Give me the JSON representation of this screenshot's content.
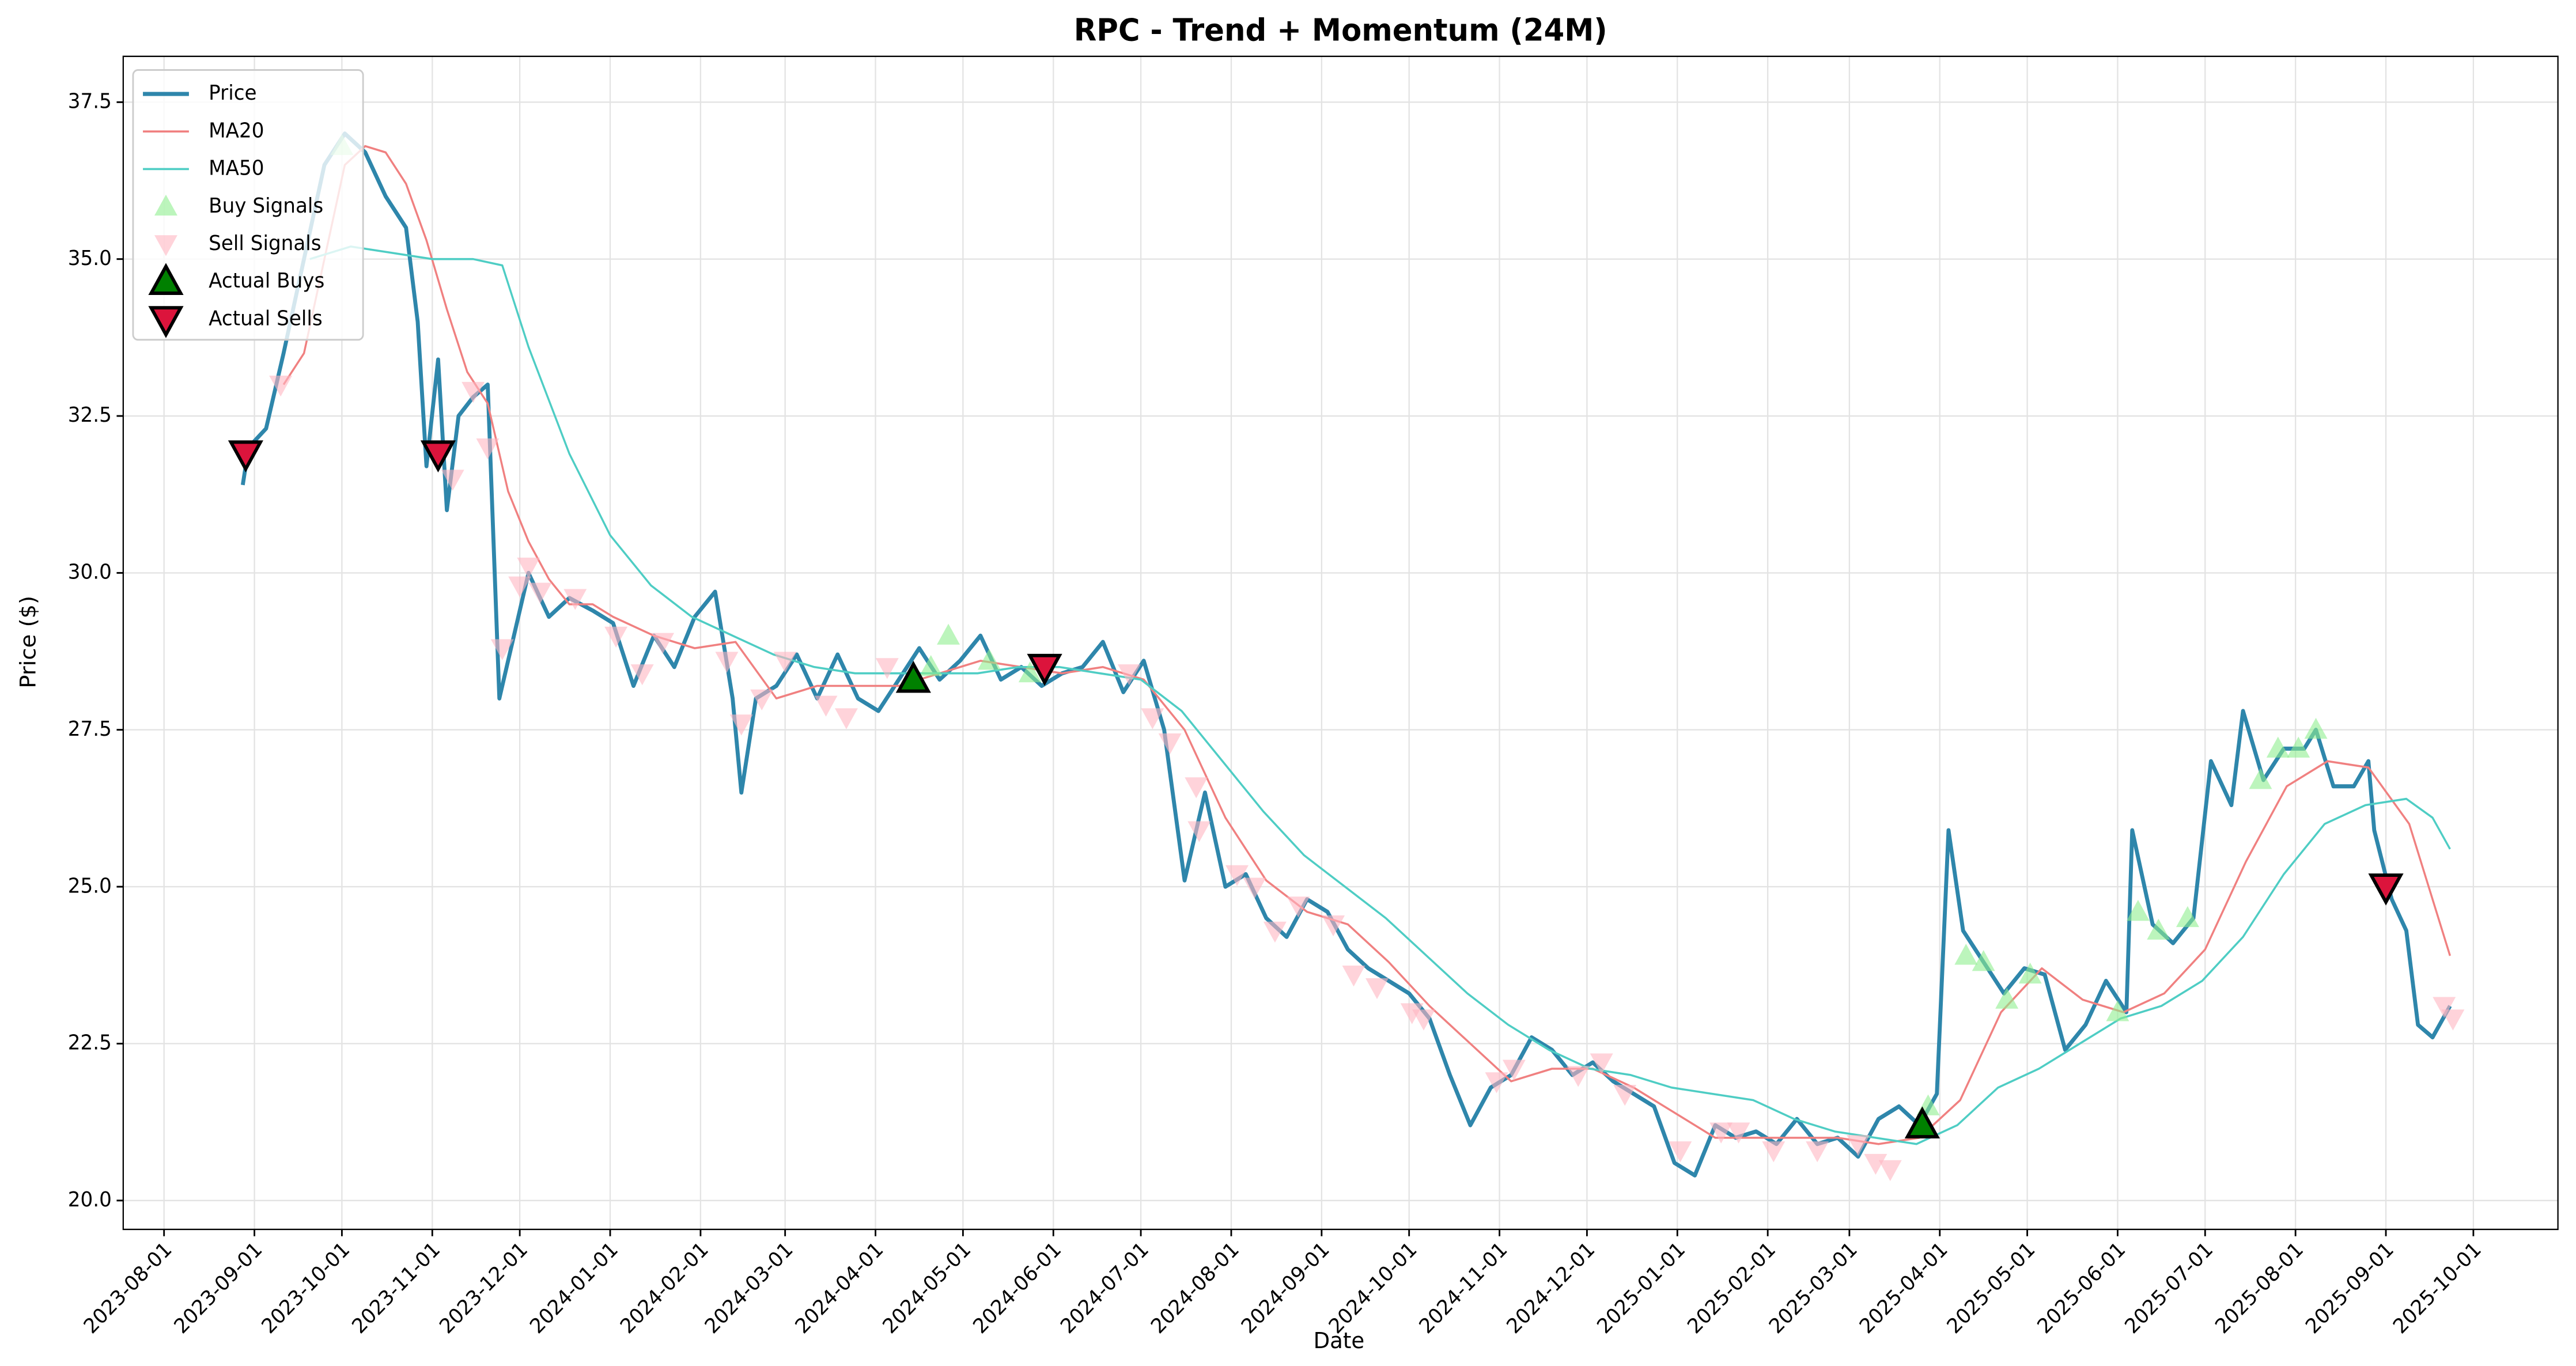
{
  "chart_data": {
    "type": "line",
    "title": "RPC - Trend + Momentum (24M)",
    "x_label": "Date",
    "y_label": "Price ($)",
    "xlim": [
      "2023-07-18",
      "2025-10-30"
    ],
    "xticks": [
      "2023-08-01",
      "2023-09-01",
      "2023-10-01",
      "2023-11-01",
      "2023-12-01",
      "2024-01-01",
      "2024-02-01",
      "2024-03-01",
      "2024-04-01",
      "2024-05-01",
      "2024-06-01",
      "2024-07-01",
      "2024-08-01",
      "2024-09-01",
      "2024-10-01",
      "2024-11-01",
      "2024-12-01",
      "2025-01-01",
      "2025-02-01",
      "2025-03-01",
      "2025-04-01",
      "2025-05-01",
      "2025-06-01",
      "2025-07-01",
      "2025-08-01",
      "2025-09-01",
      "2025-10-01"
    ],
    "ylim": [
      19.54,
      38.23
    ],
    "yticks": [
      {
        "value": 20,
        "label": "20.0"
      },
      22.5,
      {
        "value": 25,
        "label": "25.0"
      },
      27.5,
      {
        "value": 30,
        "label": "30.0"
      },
      32.5,
      {
        "value": 35,
        "label": "35.0"
      },
      37.5
    ],
    "grid": true,
    "legend": "upper left",
    "series": [
      {
        "name": "Price",
        "type": "line",
        "color": "#2e86ab",
        "linewidth": 2.4,
        "alpha": 1,
        "x": [
          "2023-08-28",
          "2023-08-30",
          "2023-09-05",
          "2023-09-11",
          "2023-09-18",
          "2023-09-25",
          "2023-10-02",
          "2023-10-09",
          "2023-10-16",
          "2023-10-23",
          "2023-10-27",
          "2023-10-30",
          "2023-11-03",
          "2023-11-06",
          "2023-11-10",
          "2023-11-15",
          "2023-11-20",
          "2023-11-24",
          "2023-11-28",
          "2023-12-04",
          "2023-12-11",
          "2023-12-18",
          "2023-12-26",
          "2024-01-02",
          "2024-01-09",
          "2024-01-16",
          "2024-01-23",
          "2024-01-30",
          "2024-02-06",
          "2024-02-12",
          "2024-02-15",
          "2024-02-20",
          "2024-02-27",
          "2024-03-05",
          "2024-03-12",
          "2024-03-19",
          "2024-03-26",
          "2024-04-02",
          "2024-04-09",
          "2024-04-16",
          "2024-04-23",
          "2024-04-30",
          "2024-05-07",
          "2024-05-14",
          "2024-05-21",
          "2024-05-28",
          "2024-06-04",
          "2024-06-11",
          "2024-06-18",
          "2024-06-25",
          "2024-07-02",
          "2024-07-09",
          "2024-07-16",
          "2024-07-23",
          "2024-07-30",
          "2024-08-06",
          "2024-08-13",
          "2024-08-20",
          "2024-08-27",
          "2024-09-03",
          "2024-09-10",
          "2024-09-17",
          "2024-09-24",
          "2024-10-01",
          "2024-10-08",
          "2024-10-15",
          "2024-10-22",
          "2024-10-29",
          "2024-11-05",
          "2024-11-12",
          "2024-11-19",
          "2024-11-26",
          "2024-12-03",
          "2024-12-10",
          "2024-12-17",
          "2024-12-24",
          "2024-12-31",
          "2025-01-07",
          "2025-01-14",
          "2025-01-21",
          "2025-01-28",
          "2025-02-04",
          "2025-02-11",
          "2025-02-18",
          "2025-02-25",
          "2025-03-04",
          "2025-03-11",
          "2025-03-18",
          "2025-03-25",
          "2025-03-31",
          "2025-04-04",
          "2025-04-09",
          "2025-04-16",
          "2025-04-23",
          "2025-04-30",
          "2025-05-07",
          "2025-05-14",
          "2025-05-21",
          "2025-05-28",
          "2025-06-04",
          "2025-06-06",
          "2025-06-13",
          "2025-06-20",
          "2025-06-27",
          "2025-07-03",
          "2025-07-10",
          "2025-07-14",
          "2025-07-21",
          "2025-07-28",
          "2025-08-04",
          "2025-08-08",
          "2025-08-14",
          "2025-08-21",
          "2025-08-26",
          "2025-08-28",
          "2025-09-03",
          "2025-09-08",
          "2025-09-12",
          "2025-09-17",
          "2025-09-23"
        ],
        "values": [
          31.4,
          32.0,
          32.3,
          33.5,
          35.0,
          36.5,
          37.0,
          36.7,
          36.0,
          35.5,
          34.0,
          31.7,
          33.4,
          31.0,
          32.5,
          32.8,
          33.0,
          28.0,
          28.8,
          30.0,
          29.3,
          29.6,
          29.4,
          29.2,
          28.2,
          29.0,
          28.5,
          29.3,
          29.7,
          28.0,
          26.5,
          28.0,
          28.2,
          28.7,
          28.0,
          28.7,
          28.0,
          27.8,
          28.3,
          28.8,
          28.3,
          28.6,
          29.0,
          28.3,
          28.5,
          28.2,
          28.4,
          28.5,
          28.9,
          28.1,
          28.6,
          27.5,
          25.1,
          26.5,
          25.0,
          25.2,
          24.5,
          24.2,
          24.8,
          24.6,
          24.0,
          23.7,
          23.5,
          23.3,
          22.9,
          22.0,
          21.2,
          21.8,
          22.0,
          22.6,
          22.4,
          22.0,
          22.2,
          21.9,
          21.7,
          21.5,
          20.6,
          20.4,
          21.2,
          21.0,
          21.1,
          20.9,
          21.3,
          20.9,
          21.0,
          20.7,
          21.3,
          21.5,
          21.2,
          21.7,
          25.9,
          24.3,
          23.8,
          23.3,
          23.7,
          23.6,
          22.4,
          22.8,
          23.5,
          23.0,
          25.9,
          24.4,
          24.1,
          24.5,
          27.0,
          26.3,
          27.8,
          26.7,
          27.2,
          27.2,
          27.5,
          26.6,
          26.6,
          27.0,
          25.9,
          24.8,
          24.3,
          22.8,
          22.6,
          23.1
        ]
      },
      {
        "name": "MA20",
        "type": "line",
        "color": "#f08080",
        "linewidth": 1.2,
        "alpha": 1,
        "x": [
          "2023-09-11",
          "2023-09-18",
          "2023-09-25",
          "2023-10-02",
          "2023-10-09",
          "2023-10-16",
          "2023-10-23",
          "2023-10-30",
          "2023-11-06",
          "2023-11-13",
          "2023-11-20",
          "2023-11-27",
          "2023-12-04",
          "2023-12-11",
          "2023-12-18",
          "2023-12-26",
          "2024-01-02",
          "2024-01-16",
          "2024-01-30",
          "2024-02-13",
          "2024-02-27",
          "2024-03-12",
          "2024-03-26",
          "2024-04-09",
          "2024-04-23",
          "2024-05-07",
          "2024-05-21",
          "2024-06-04",
          "2024-06-18",
          "2024-07-02",
          "2024-07-16",
          "2024-07-30",
          "2024-08-13",
          "2024-08-27",
          "2024-09-10",
          "2024-09-24",
          "2024-10-08",
          "2024-10-22",
          "2024-11-05",
          "2024-11-19",
          "2024-12-03",
          "2024-12-17",
          "2024-12-31",
          "2025-01-14",
          "2025-01-28",
          "2025-02-11",
          "2025-02-25",
          "2025-03-11",
          "2025-03-25",
          "2025-04-08",
          "2025-04-22",
          "2025-05-06",
          "2025-05-20",
          "2025-06-03",
          "2025-06-17",
          "2025-07-01",
          "2025-07-15",
          "2025-07-29",
          "2025-08-12",
          "2025-08-26",
          "2025-09-09",
          "2025-09-23"
        ],
        "values": [
          33.0,
          33.5,
          35.0,
          36.5,
          36.8,
          36.7,
          36.2,
          35.3,
          34.2,
          33.2,
          32.7,
          31.3,
          30.5,
          29.9,
          29.5,
          29.5,
          29.3,
          29.0,
          28.8,
          28.9,
          28.0,
          28.2,
          28.2,
          28.2,
          28.4,
          28.6,
          28.5,
          28.4,
          28.5,
          28.3,
          27.5,
          26.1,
          25.1,
          24.6,
          24.4,
          23.8,
          23.1,
          22.5,
          21.9,
          22.1,
          22.1,
          21.8,
          21.4,
          21.0,
          21.0,
          21.0,
          21.0,
          20.9,
          21.0,
          21.6,
          23.0,
          23.7,
          23.2,
          23.0,
          23.3,
          24.0,
          25.4,
          26.6,
          27.0,
          26.9,
          26.0,
          23.9
        ]
      },
      {
        "name": "MA50",
        "type": "line",
        "color": "#4ecdc4",
        "linewidth": 1.2,
        "alpha": 1,
        "x": [
          "2023-09-20",
          "2023-10-04",
          "2023-10-18",
          "2023-11-01",
          "2023-11-15",
          "2023-11-25",
          "2023-12-04",
          "2023-12-18",
          "2024-01-01",
          "2024-01-15",
          "2024-01-29",
          "2024-02-12",
          "2024-02-26",
          "2024-03-11",
          "2024-03-25",
          "2024-04-08",
          "2024-04-22",
          "2024-05-06",
          "2024-05-20",
          "2024-06-03",
          "2024-06-17",
          "2024-07-01",
          "2024-07-15",
          "2024-07-29",
          "2024-08-12",
          "2024-08-26",
          "2024-09-09",
          "2024-09-23",
          "2024-10-07",
          "2024-10-21",
          "2024-11-04",
          "2024-11-18",
          "2024-12-02",
          "2024-12-16",
          "2024-12-30",
          "2025-01-13",
          "2025-01-27",
          "2025-02-10",
          "2025-02-24",
          "2025-03-10",
          "2025-03-24",
          "2025-04-07",
          "2025-04-21",
          "2025-05-05",
          "2025-05-19",
          "2025-06-02",
          "2025-06-16",
          "2025-06-30",
          "2025-07-14",
          "2025-07-28",
          "2025-08-11",
          "2025-08-25",
          "2025-09-08",
          "2025-09-17",
          "2025-09-23"
        ],
        "values": [
          35.0,
          35.2,
          35.1,
          35.0,
          35.0,
          34.9,
          33.6,
          31.9,
          30.6,
          29.8,
          29.3,
          29.0,
          28.7,
          28.5,
          28.4,
          28.4,
          28.4,
          28.4,
          28.5,
          28.5,
          28.4,
          28.3,
          27.8,
          27.0,
          26.2,
          25.5,
          25.0,
          24.5,
          23.9,
          23.3,
          22.8,
          22.4,
          22.1,
          22.0,
          21.8,
          21.7,
          21.6,
          21.3,
          21.1,
          21.0,
          20.9,
          21.2,
          21.8,
          22.1,
          22.5,
          22.9,
          23.1,
          23.5,
          24.2,
          25.2,
          26.0,
          26.3,
          26.4,
          26.1,
          25.6
        ]
      },
      {
        "name": "Buy Signals",
        "type": "scatter",
        "marker": "triangle-up",
        "color": "#90ee90",
        "edgecolor": "none",
        "size": 7,
        "alpha": 0.6,
        "x": [
          "2023-10-01",
          "2024-04-20",
          "2024-04-26",
          "2024-05-10",
          "2024-05-24",
          "2025-03-28",
          "2025-04-10",
          "2025-04-16",
          "2025-04-24",
          "2025-05-02",
          "2025-06-01",
          "2025-06-08",
          "2025-06-15",
          "2025-06-25",
          "2025-07-20",
          "2025-07-26",
          "2025-08-02",
          "2025-08-08"
        ],
        "values": [
          36.8,
          28.5,
          29.0,
          28.6,
          28.4,
          21.5,
          23.9,
          23.8,
          23.2,
          23.6,
          23.0,
          24.6,
          24.3,
          24.5,
          26.7,
          27.2,
          27.2,
          27.5
        ]
      },
      {
        "name": "Sell Signals",
        "type": "scatter",
        "marker": "triangle-down",
        "color": "#ffb6c1",
        "edgecolor": "none",
        "size": 7,
        "alpha": 0.6,
        "x": [
          "2023-09-10",
          "2023-11-08",
          "2023-11-15",
          "2023-11-20",
          "2023-11-25",
          "2023-12-01",
          "2023-12-04",
          "2023-12-08",
          "2023-12-20",
          "2024-01-03",
          "2024-01-12",
          "2024-01-19",
          "2024-02-10",
          "2024-02-15",
          "2024-02-22",
          "2024-03-01",
          "2024-03-15",
          "2024-03-22",
          "2024-04-05",
          "2024-06-27",
          "2024-07-05",
          "2024-07-11",
          "2024-07-20",
          "2024-07-21",
          "2024-08-03",
          "2024-08-09",
          "2024-08-16",
          "2024-08-24",
          "2024-09-05",
          "2024-09-12",
          "2024-09-20",
          "2024-10-02",
          "2024-10-06",
          "2024-10-31",
          "2024-11-06",
          "2024-11-28",
          "2024-12-06",
          "2024-12-14",
          "2025-01-02",
          "2025-01-16",
          "2025-01-22",
          "2025-02-03",
          "2025-02-18",
          "2025-03-04",
          "2025-03-10",
          "2025-03-15",
          "2025-09-21",
          "2025-09-24"
        ],
        "values": [
          33.0,
          31.5,
          32.9,
          32.0,
          28.8,
          29.8,
          30.1,
          29.7,
          29.6,
          29.0,
          28.4,
          28.9,
          28.6,
          27.6,
          28.0,
          28.6,
          27.9,
          27.7,
          28.5,
          28.4,
          27.7,
          27.3,
          26.6,
          25.9,
          25.2,
          25.0,
          24.3,
          24.7,
          24.4,
          23.6,
          23.4,
          23.0,
          22.9,
          21.9,
          22.1,
          22.0,
          22.2,
          21.7,
          20.8,
          21.1,
          21.1,
          20.8,
          20.8,
          20.9,
          20.6,
          20.5,
          23.1,
          22.9
        ]
      },
      {
        "name": "Actual Buys",
        "type": "scatter",
        "marker": "triangle-up",
        "color": "#008000",
        "edgecolor": "#000000",
        "size": 9,
        "alpha": 1,
        "x": [
          "2024-04-14",
          "2025-03-26"
        ],
        "values": [
          28.3,
          21.2
        ]
      },
      {
        "name": "Actual Sells",
        "type": "scatter",
        "marker": "triangle-down",
        "color": "#dc143c",
        "edgecolor": "#000000",
        "size": 9,
        "alpha": 1,
        "x": [
          "2023-08-29",
          "2023-11-03",
          "2024-05-29",
          "2025-09-01"
        ],
        "values": [
          31.9,
          31.9,
          28.5,
          25.0
        ]
      }
    ]
  }
}
